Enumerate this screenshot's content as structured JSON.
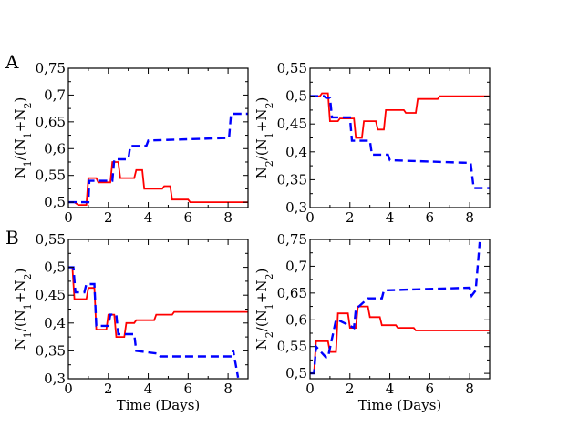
{
  "figure": {
    "row_labels": [
      "A",
      "B"
    ],
    "x_axis_title": "Time (Days)"
  },
  "chart_data": [
    {
      "type": "line",
      "panel": "A",
      "position": "top-left",
      "ylabel_parts": [
        "N",
        "1",
        "/(N",
        "1",
        "+N",
        "2",
        ")"
      ],
      "xlim": [
        0,
        9
      ],
      "ylim": [
        0.49,
        0.75
      ],
      "xticks": [
        0,
        2,
        4,
        6,
        8
      ],
      "xtick_labels": [
        "0",
        "2",
        "4",
        "6",
        "8"
      ],
      "yticks": [
        0.5,
        0.55,
        0.6,
        0.65,
        0.7,
        0.75
      ],
      "ytick_labels": [
        "0,5",
        "0,55",
        "0,6",
        "0,65",
        "0,7",
        "0,75"
      ],
      "xlabel": "",
      "series": [
        {
          "name": "red solid",
          "color": "#ff0000",
          "style": "solid",
          "x": [
            0,
            0.3,
            0.5,
            0.9,
            1.0,
            1.4,
            1.5,
            2.1,
            2.2,
            2.5,
            2.6,
            3.3,
            3.4,
            3.7,
            3.8,
            4.7,
            4.8,
            5.1,
            5.2,
            6.0,
            6.1,
            9.0
          ],
          "y": [
            0.5,
            0.5,
            0.495,
            0.495,
            0.545,
            0.545,
            0.537,
            0.537,
            0.575,
            0.575,
            0.545,
            0.545,
            0.56,
            0.56,
            0.525,
            0.525,
            0.53,
            0.53,
            0.505,
            0.505,
            0.5,
            0.5
          ]
        },
        {
          "name": "blue dashed",
          "color": "#0000ff",
          "style": "dashed",
          "x": [
            0,
            1.0,
            1.05,
            2.2,
            2.3,
            3.0,
            3.1,
            3.9,
            4.0,
            8.05,
            8.15,
            9.0
          ],
          "y": [
            0.5,
            0.5,
            0.54,
            0.54,
            0.58,
            0.58,
            0.605,
            0.605,
            0.615,
            0.62,
            0.665,
            0.665
          ]
        }
      ]
    },
    {
      "type": "line",
      "panel": "A",
      "position": "top-right",
      "ylabel_parts": [
        "N",
        "2",
        "/(N",
        "1",
        "+N",
        "2",
        ")"
      ],
      "xlim": [
        0,
        9
      ],
      "ylim": [
        0.3,
        0.55
      ],
      "xticks": [
        0,
        2,
        4,
        6,
        8
      ],
      "xtick_labels": [
        "0",
        "2",
        "4",
        "6",
        "8"
      ],
      "yticks": [
        0.3,
        0.35,
        0.4,
        0.45,
        0.5,
        0.55
      ],
      "ytick_labels": [
        "0,3",
        "0,35",
        "0,4",
        "0,45",
        "0,5",
        "0,55"
      ],
      "xlabel": "",
      "series": [
        {
          "name": "red solid",
          "color": "#ff0000",
          "style": "solid",
          "x": [
            0,
            0.5,
            0.6,
            0.9,
            1.0,
            1.4,
            1.5,
            2.2,
            2.3,
            2.6,
            2.7,
            3.3,
            3.4,
            3.7,
            3.8,
            4.7,
            4.8,
            5.3,
            5.4,
            6.4,
            6.5,
            9.0
          ],
          "y": [
            0.5,
            0.5,
            0.505,
            0.505,
            0.455,
            0.455,
            0.46,
            0.46,
            0.425,
            0.425,
            0.455,
            0.455,
            0.44,
            0.44,
            0.475,
            0.475,
            0.47,
            0.47,
            0.495,
            0.495,
            0.5,
            0.5
          ]
        },
        {
          "name": "blue dashed",
          "color": "#0000ff",
          "style": "dashed",
          "x": [
            0,
            0.7,
            0.8,
            1.0,
            1.1,
            2.0,
            2.1,
            3.0,
            3.1,
            3.9,
            4.0,
            8.05,
            8.2,
            9.0
          ],
          "y": [
            0.5,
            0.5,
            0.497,
            0.497,
            0.462,
            0.462,
            0.42,
            0.42,
            0.395,
            0.395,
            0.385,
            0.38,
            0.335,
            0.335
          ]
        }
      ]
    },
    {
      "type": "line",
      "panel": "B",
      "position": "bottom-left",
      "ylabel_parts": [
        "N",
        "1",
        "/(N",
        "1",
        "+N",
        "2",
        ")"
      ],
      "xlim": [
        0,
        9
      ],
      "ylim": [
        0.3,
        0.55
      ],
      "xticks": [
        0,
        2,
        4,
        6,
        8
      ],
      "xtick_labels": [
        "0",
        "2",
        "4",
        "6",
        "8"
      ],
      "yticks": [
        0.3,
        0.35,
        0.4,
        0.45,
        0.5,
        0.55
      ],
      "ytick_labels": [
        "0,3",
        "0,35",
        "0,4",
        "0,45",
        "0,5",
        "0,55"
      ],
      "xlabel": "Time (Days)",
      "series": [
        {
          "name": "red solid",
          "color": "#ff0000",
          "style": "solid",
          "x": [
            0,
            0.2,
            0.3,
            0.9,
            1.0,
            1.3,
            1.4,
            1.9,
            2.0,
            2.3,
            2.4,
            2.8,
            2.9,
            3.3,
            3.4,
            4.3,
            4.4,
            5.2,
            5.3,
            9.0
          ],
          "y": [
            0.5,
            0.5,
            0.443,
            0.443,
            0.463,
            0.463,
            0.388,
            0.388,
            0.415,
            0.415,
            0.375,
            0.375,
            0.4,
            0.4,
            0.405,
            0.405,
            0.415,
            0.415,
            0.42,
            0.42
          ]
        },
        {
          "name": "blue dashed",
          "color": "#0000ff",
          "style": "dashed",
          "x": [
            0,
            0.25,
            0.35,
            0.8,
            0.9,
            1.3,
            1.4,
            2.0,
            2.1,
            2.4,
            2.5,
            3.3,
            3.4,
            4.5,
            4.6,
            8.2,
            8.25,
            8.5
          ],
          "y": [
            0.5,
            0.5,
            0.455,
            0.455,
            0.47,
            0.47,
            0.395,
            0.395,
            0.415,
            0.415,
            0.38,
            0.38,
            0.35,
            0.345,
            0.34,
            0.34,
            0.352,
            0.302
          ]
        }
      ]
    },
    {
      "type": "line",
      "panel": "B",
      "position": "bottom-right",
      "ylabel_parts": [
        "N",
        "2",
        "/(N",
        "1",
        "+N",
        "2",
        ")"
      ],
      "xlim": [
        0,
        9
      ],
      "ylim": [
        0.49,
        0.75
      ],
      "xticks": [
        0,
        2,
        4,
        6,
        8
      ],
      "xtick_labels": [
        "0",
        "2",
        "4",
        "6",
        "8"
      ],
      "yticks": [
        0.5,
        0.55,
        0.6,
        0.65,
        0.7,
        0.75
      ],
      "ytick_labels": [
        "0,5",
        "0,55",
        "0,6",
        "0,65",
        "0,7",
        "0,75"
      ],
      "xlabel": "Time (Days)",
      "series": [
        {
          "name": "red solid",
          "color": "#ff0000",
          "style": "solid",
          "x": [
            0,
            0.2,
            0.3,
            0.9,
            1.0,
            1.3,
            1.4,
            1.9,
            2.0,
            2.3,
            2.4,
            2.9,
            3.0,
            3.5,
            3.6,
            4.3,
            4.4,
            5.2,
            5.3,
            9.0
          ],
          "y": [
            0.5,
            0.5,
            0.56,
            0.56,
            0.54,
            0.54,
            0.612,
            0.612,
            0.585,
            0.585,
            0.625,
            0.625,
            0.605,
            0.605,
            0.59,
            0.59,
            0.585,
            0.585,
            0.58,
            0.58
          ]
        },
        {
          "name": "blue dashed",
          "color": "#0000ff",
          "style": "dashed",
          "x": [
            0,
            0.2,
            0.3,
            0.8,
            0.9,
            1.3,
            1.4,
            2.2,
            2.3,
            2.9,
            3.0,
            3.6,
            3.7,
            8.0,
            8.1,
            8.3,
            8.5
          ],
          "y": [
            0.5,
            0.5,
            0.55,
            0.53,
            0.53,
            0.6,
            0.6,
            0.585,
            0.62,
            0.64,
            0.64,
            0.64,
            0.655,
            0.66,
            0.645,
            0.655,
            0.745
          ]
        }
      ]
    }
  ]
}
